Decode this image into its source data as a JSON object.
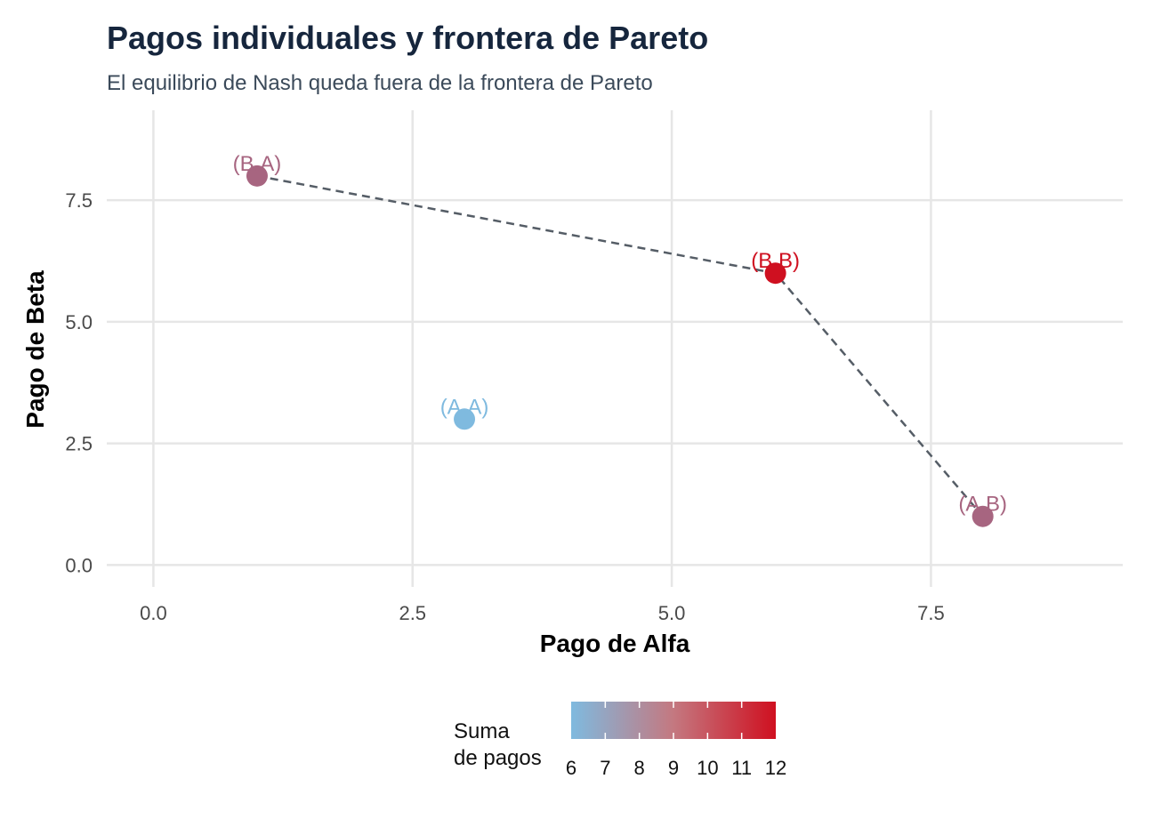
{
  "chart_data": {
    "type": "scatter",
    "title": "Pagos individuales y frontera de Pareto",
    "subtitle": "El equilibrio de Nash queda fuera de la frontera de Pareto",
    "xlabel": "Pago de Alfa",
    "ylabel": "Pago de Beta",
    "xlim": [
      -0.45,
      9.35
    ],
    "ylim": [
      -0.45,
      9.35
    ],
    "x_ticks": [
      {
        "value": 0,
        "label": "0.0"
      },
      {
        "value": 2.5,
        "label": "2.5"
      },
      {
        "value": 5,
        "label": "5.0"
      },
      {
        "value": 7.5,
        "label": "7.5"
      }
    ],
    "y_ticks": [
      {
        "value": 0,
        "label": "0.0"
      },
      {
        "value": 2.5,
        "label": "2.5"
      },
      {
        "value": 5,
        "label": "5.0"
      },
      {
        "value": 7.5,
        "label": "7.5"
      }
    ],
    "grid": true,
    "points": [
      {
        "label": "(A,A)",
        "x": 3,
        "y": 3,
        "sum": 6
      },
      {
        "label": "(A,B)",
        "x": 8,
        "y": 1,
        "sum": 9
      },
      {
        "label": "(B,A)",
        "x": 1,
        "y": 8,
        "sum": 9
      },
      {
        "label": "(B,B)",
        "x": 6,
        "y": 6,
        "sum": 12
      }
    ],
    "pareto_frontier": [
      [
        1,
        8
      ],
      [
        6,
        6
      ],
      [
        8,
        1
      ]
    ],
    "color_scale": {
      "title_lines": [
        "Suma",
        "de pagos"
      ],
      "min": 6,
      "max": 12,
      "low_color": "#7fbadf",
      "high_color": "#cf1020",
      "ticks": [
        "6",
        "7",
        "8",
        "9",
        "10",
        "11",
        "12"
      ],
      "placement": "bottom"
    },
    "frontier_color": "#555d66",
    "grid_color": "#e6e6e6"
  }
}
